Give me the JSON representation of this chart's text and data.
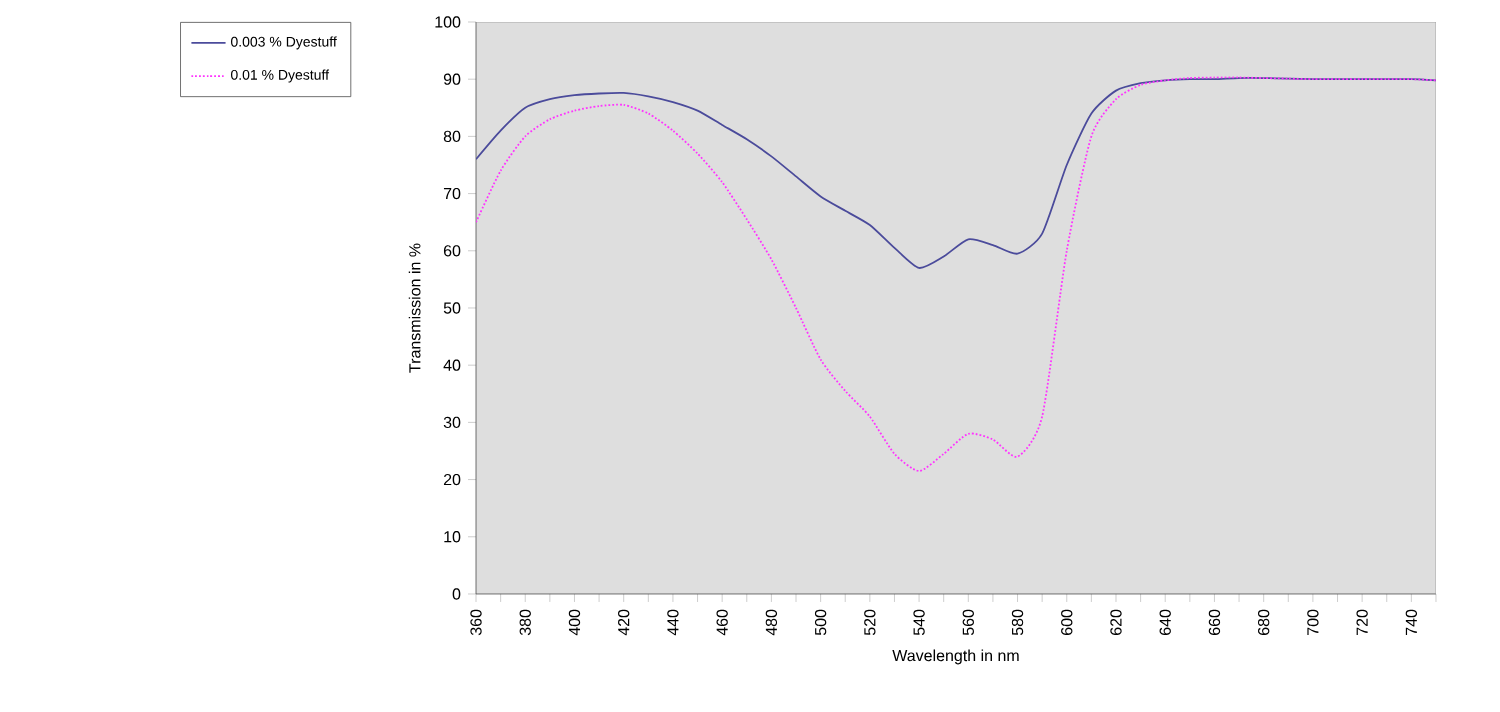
{
  "chart_data": {
    "type": "line",
    "xlabel": "Wavelength  in nm",
    "ylabel": "Transmission in %",
    "x": [
      360,
      370,
      380,
      390,
      400,
      410,
      420,
      430,
      440,
      450,
      460,
      470,
      480,
      490,
      500,
      510,
      520,
      530,
      540,
      550,
      560,
      570,
      580,
      590,
      600,
      610,
      620,
      630,
      640,
      650,
      660,
      670,
      680,
      690,
      700,
      710,
      720,
      730,
      740,
      750
    ],
    "series": [
      {
        "name": "0.003 % Dyestuff",
        "color": "#4b4b9b",
        "line_style": "solid",
        "values": [
          76,
          81,
          85,
          86.5,
          87.2,
          87.5,
          87.6,
          87,
          86,
          84.5,
          82,
          79.5,
          76.5,
          73,
          69.5,
          67,
          64.5,
          60.5,
          57,
          59,
          62,
          61,
          59.5,
          63,
          75,
          84,
          88,
          89.3,
          89.8,
          90,
          90,
          90.2,
          90.2,
          90.1,
          90,
          90,
          90,
          90,
          90,
          89.8
        ]
      },
      {
        "name": "0.01 % Dyestuff",
        "color": "#ff33ff",
        "line_style": "dotted",
        "values": [
          65,
          74,
          80,
          83,
          84.5,
          85.3,
          85.5,
          84,
          81,
          77,
          72,
          65.5,
          58.5,
          50,
          41,
          35.5,
          31,
          24.5,
          21.5,
          24.5,
          28,
          27,
          24,
          31,
          60,
          80,
          86.5,
          89,
          89.8,
          90.2,
          90.3,
          90.3,
          90.2,
          90.1,
          90,
          90,
          90,
          90,
          90,
          89.8
        ]
      }
    ],
    "xlim": [
      360,
      750
    ],
    "xticks": [
      360,
      {
        "value": 370,
        "label": null
      },
      380,
      {
        "value": 390,
        "label": null
      },
      400,
      {
        "value": 410,
        "label": null
      },
      420,
      {
        "value": 430,
        "label": null
      },
      440,
      {
        "value": 450,
        "label": null
      },
      460,
      {
        "value": 470,
        "label": null
      },
      480,
      {
        "value": 490,
        "label": null
      },
      500,
      {
        "value": 510,
        "label": null
      },
      520,
      {
        "value": 530,
        "label": null
      },
      540,
      {
        "value": 550,
        "label": null
      },
      560,
      {
        "value": 570,
        "label": null
      },
      580,
      {
        "value": 590,
        "label": null
      },
      600,
      {
        "value": 610,
        "label": null
      },
      620,
      {
        "value": 630,
        "label": null
      },
      640,
      {
        "value": 650,
        "label": null
      },
      660,
      {
        "value": 670,
        "label": null
      },
      680,
      {
        "value": 690,
        "label": null
      },
      700,
      {
        "value": 710,
        "label": null
      },
      720,
      {
        "value": 730,
        "label": null
      },
      740,
      {
        "value": 750,
        "label": null
      }
    ],
    "ylim": [
      0,
      100
    ],
    "yticks": [
      0,
      10,
      20,
      30,
      40,
      50,
      60,
      70,
      80,
      90,
      100
    ],
    "legend": "top left",
    "grid": false
  }
}
